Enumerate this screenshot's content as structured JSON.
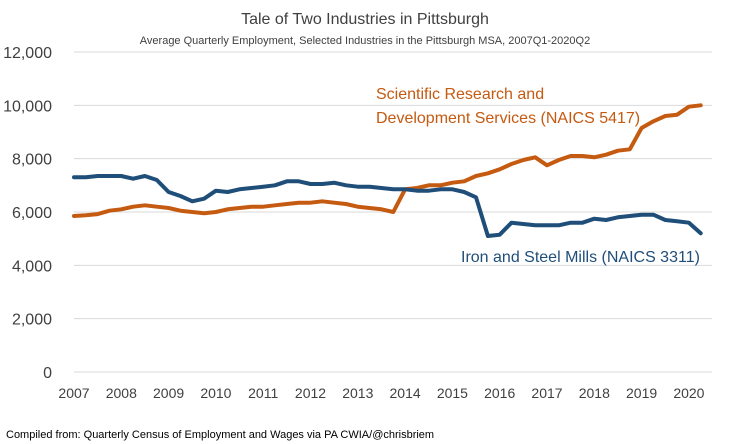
{
  "chart_data": {
    "type": "line",
    "title": "Tale of Two Industries in Pittsburgh",
    "subtitle": "Average Quarterly Employment, Selected Industries in the Pittsburgh MSA, 2007Q1-2020Q2",
    "xlabel": "",
    "ylabel": "",
    "ylim": [
      0,
      12000
    ],
    "yticks": [
      0,
      2000,
      4000,
      6000,
      8000,
      10000,
      12000
    ],
    "ytick_labels": [
      "0",
      "2,000",
      "4,000",
      "6,000",
      "8,000",
      "10,000",
      "12,000"
    ],
    "x_tick_labels": [
      "2007",
      "2008",
      "2009",
      "2010",
      "2011",
      "2012",
      "2013",
      "2014",
      "2015",
      "2016",
      "2017",
      "2018",
      "2019",
      "2020"
    ],
    "x_start_year": 2007,
    "grid": true,
    "series": [
      {
        "name": "Scientific Research and Development Services (NAICS 5417)",
        "label_lines": [
          "Scientific Research and",
          "Development Services (NAICS 5417)"
        ],
        "color": "#C55A11",
        "values": [
          5850,
          5880,
          5920,
          6050,
          6100,
          6200,
          6250,
          6200,
          6150,
          6050,
          6000,
          5950,
          6000,
          6100,
          6150,
          6200,
          6200,
          6250,
          6300,
          6350,
          6350,
          6400,
          6350,
          6300,
          6200,
          6150,
          6100,
          6000,
          6850,
          6900,
          7000,
          7000,
          7100,
          7150,
          7350,
          7450,
          7600,
          7800,
          7950,
          8050,
          7750,
          7950,
          8100,
          8100,
          8050,
          8150,
          8300,
          8350,
          9150,
          9400,
          9600,
          9650,
          9950,
          10000
        ]
      },
      {
        "name": "Iron and Steel Mills (NAICS 3311)",
        "label_lines": [
          "Iron and Steel Mills (NAICS 3311)"
        ],
        "color": "#1F4E79",
        "values": [
          7300,
          7300,
          7350,
          7350,
          7350,
          7250,
          7350,
          7200,
          6750,
          6600,
          6400,
          6500,
          6800,
          6750,
          6850,
          6900,
          6950,
          7000,
          7150,
          7150,
          7050,
          7050,
          7100,
          7000,
          6950,
          6950,
          6900,
          6850,
          6850,
          6800,
          6800,
          6850,
          6850,
          6750,
          6550,
          5100,
          5150,
          5600,
          5550,
          5500,
          5500,
          5500,
          5600,
          5600,
          5750,
          5700,
          5800,
          5850,
          5900,
          5900,
          5700,
          5650,
          5600,
          5200
        ]
      }
    ]
  },
  "source_note": "Compiled from: Quarterly Census of Employment and Wages via PA CWIA/@chrisbriem"
}
